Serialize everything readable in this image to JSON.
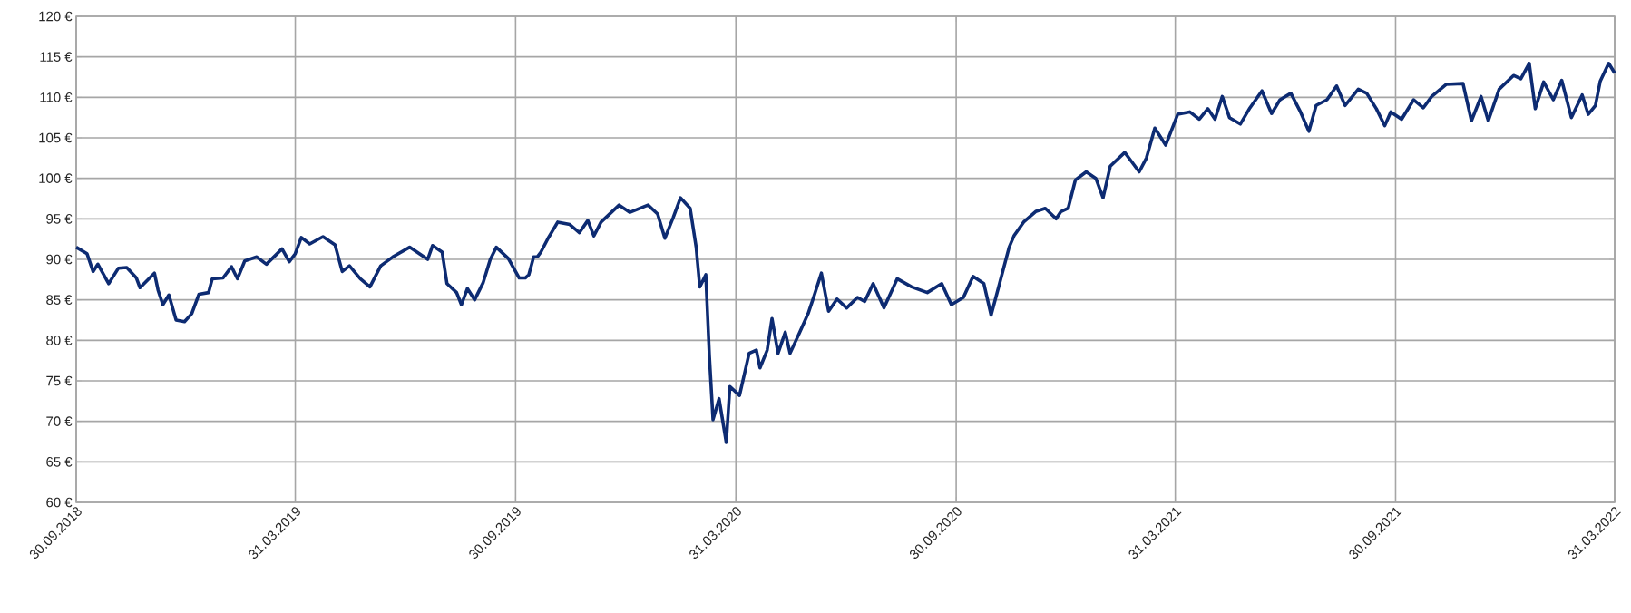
{
  "chart_data": {
    "type": "line",
    "color": "#0d2b72",
    "grid": true,
    "marker": "none",
    "line_style": "solid",
    "xlim": [
      "2018-09-30",
      "2022-03-31"
    ],
    "xticks": [
      {
        "value": "2018-09-30",
        "label": "30.09.2018"
      },
      {
        "value": "2019-03-31",
        "label": "31.03.2019"
      },
      {
        "value": "2019-09-30",
        "label": "30.09.2019"
      },
      {
        "value": "2020-03-31",
        "label": "31.03.2020"
      },
      {
        "value": "2020-09-30",
        "label": "30.09.2020"
      },
      {
        "value": "2021-03-31",
        "label": "31.03.2021"
      },
      {
        "value": "2021-09-30",
        "label": "30.09.2021"
      },
      {
        "value": "2022-03-31",
        "label": "31.03.2022"
      }
    ],
    "ylim": [
      60,
      120
    ],
    "yticks": [
      {
        "value": 60,
        "label": "60 €"
      },
      {
        "value": 65,
        "label": "65 €"
      },
      {
        "value": 70,
        "label": "70 €"
      },
      {
        "value": 75,
        "label": "75 €"
      },
      {
        "value": 80,
        "label": "80 €"
      },
      {
        "value": 85,
        "label": "85 €"
      },
      {
        "value": 90,
        "label": "90 €"
      },
      {
        "value": 95,
        "label": "95 €"
      },
      {
        "value": 100,
        "label": "100 €"
      },
      {
        "value": 105,
        "label": "105 €"
      },
      {
        "value": 110,
        "label": "110 €"
      },
      {
        "value": 115,
        "label": "115 €"
      },
      {
        "value": 120,
        "label": "120 €"
      }
    ],
    "x": [
      "2018-09-30",
      "2018-10-09",
      "2018-10-14",
      "2018-10-18",
      "2018-10-27",
      "2018-11-04",
      "2018-11-11",
      "2018-11-19",
      "2018-11-22",
      "2018-12-04",
      "2018-12-07",
      "2018-12-11",
      "2018-12-16",
      "2018-12-22",
      "2018-12-29",
      "2019-01-04",
      "2019-01-10",
      "2019-01-18",
      "2019-01-21",
      "2019-01-30",
      "2019-02-06",
      "2019-02-11",
      "2019-02-17",
      "2019-02-27",
      "2019-03-07",
      "2019-03-20",
      "2019-03-26",
      "2019-03-31",
      "2019-04-05",
      "2019-04-12",
      "2019-04-23",
      "2019-05-03",
      "2019-05-09",
      "2019-05-15",
      "2019-05-24",
      "2019-06-01",
      "2019-06-10",
      "2019-06-20",
      "2019-07-04",
      "2019-07-19",
      "2019-07-23",
      "2019-07-31",
      "2019-08-04",
      "2019-08-12",
      "2019-08-16",
      "2019-08-21",
      "2019-08-27",
      "2019-09-03",
      "2019-09-09",
      "2019-09-14",
      "2019-09-24",
      "2019-10-03",
      "2019-10-08",
      "2019-10-11",
      "2019-10-15",
      "2019-10-18",
      "2019-10-21",
      "2019-10-27",
      "2019-11-04",
      "2019-11-14",
      "2019-11-22",
      "2019-11-29",
      "2019-12-04",
      "2019-12-10",
      "2019-12-25",
      "2020-01-03",
      "2020-01-18",
      "2020-01-26",
      "2020-02-01",
      "2020-02-08",
      "2020-02-14",
      "2020-02-22",
      "2020-02-27",
      "2020-03-01",
      "2020-03-06",
      "2020-03-09",
      "2020-03-12",
      "2020-03-17",
      "2020-03-23",
      "2020-03-26",
      "2020-04-03",
      "2020-04-11",
      "2020-04-17",
      "2020-04-20",
      "2020-04-26",
      "2020-04-30",
      "2020-05-05",
      "2020-05-11",
      "2020-05-15",
      "2020-05-23",
      "2020-05-30",
      "2020-06-04",
      "2020-06-10",
      "2020-06-16",
      "2020-06-23",
      "2020-07-01",
      "2020-07-10",
      "2020-07-16",
      "2020-07-23",
      "2020-08-01",
      "2020-08-12",
      "2020-08-24",
      "2020-09-06",
      "2020-09-18",
      "2020-09-26",
      "2020-10-06",
      "2020-10-14",
      "2020-10-23",
      "2020-10-29",
      "2020-11-05",
      "2020-11-13",
      "2020-11-17",
      "2020-11-25",
      "2020-12-05",
      "2020-12-13",
      "2020-12-22",
      "2020-12-26",
      "2021-01-01",
      "2021-01-07",
      "2021-01-16",
      "2021-01-24",
      "2021-01-30",
      "2021-02-05",
      "2021-02-17",
      "2021-02-23",
      "2021-03-01",
      "2021-03-07",
      "2021-03-14",
      "2021-03-23",
      "2021-04-02",
      "2021-04-12",
      "2021-04-20",
      "2021-04-27",
      "2021-05-03",
      "2021-05-09",
      "2021-05-15",
      "2021-05-24",
      "2021-06-01",
      "2021-06-11",
      "2021-06-19",
      "2021-06-26",
      "2021-07-05",
      "2021-07-13",
      "2021-07-20",
      "2021-07-26",
      "2021-08-04",
      "2021-08-12",
      "2021-08-19",
      "2021-08-30",
      "2021-09-06",
      "2021-09-14",
      "2021-09-21",
      "2021-09-26",
      "2021-10-05",
      "2021-10-15",
      "2021-10-23",
      "2021-10-30",
      "2021-11-11",
      "2021-11-25",
      "2021-12-02",
      "2021-12-10",
      "2021-12-16",
      "2021-12-25",
      "2022-01-06",
      "2022-01-12",
      "2022-01-19",
      "2022-01-24",
      "2022-01-31",
      "2022-02-08",
      "2022-02-15",
      "2022-02-23",
      "2022-03-04",
      "2022-03-09",
      "2022-03-15",
      "2022-03-19",
      "2022-03-26",
      "2022-03-31"
    ],
    "values": [
      91.5,
      90.7,
      88.5,
      89.4,
      87.0,
      88.9,
      89.0,
      87.7,
      86.5,
      88.3,
      86.2,
      84.4,
      85.6,
      82.5,
      82.3,
      83.3,
      85.7,
      85.9,
      87.6,
      87.7,
      89.1,
      87.6,
      89.8,
      90.3,
      89.4,
      91.3,
      89.7,
      90.7,
      92.7,
      91.9,
      92.8,
      91.8,
      88.5,
      89.2,
      87.6,
      86.6,
      89.2,
      90.3,
      91.5,
      90.0,
      91.7,
      90.9,
      87.0,
      85.9,
      84.4,
      86.4,
      85.0,
      87.1,
      90.0,
      91.5,
      90.1,
      87.7,
      87.7,
      88.1,
      90.3,
      90.3,
      90.9,
      92.6,
      94.6,
      94.3,
      93.3,
      94.8,
      92.9,
      94.6,
      96.7,
      95.8,
      96.7,
      95.6,
      92.6,
      95.2,
      97.6,
      96.3,
      91.5,
      86.6,
      88.1,
      78.0,
      70.2,
      72.8,
      67.4,
      74.3,
      73.2,
      78.4,
      78.8,
      76.6,
      78.8,
      82.7,
      78.4,
      81.0,
      78.4,
      81.0,
      83.3,
      85.5,
      88.3,
      83.6,
      85.1,
      84.0,
      85.3,
      84.8,
      87.0,
      84.0,
      87.6,
      86.6,
      85.9,
      87.0,
      84.4,
      85.3,
      87.9,
      87.0,
      83.1,
      87.0,
      91.5,
      92.9,
      94.6,
      95.9,
      96.3,
      95.0,
      95.9,
      96.3,
      99.8,
      100.8,
      100.0,
      97.6,
      101.5,
      103.2,
      102.0,
      100.8,
      102.5,
      106.2,
      104.1,
      107.9,
      108.2,
      107.3,
      108.6,
      107.3,
      110.1,
      107.5,
      106.7,
      108.7,
      110.8,
      108.0,
      109.7,
      110.5,
      108.2,
      105.8,
      109.0,
      109.7,
      111.4,
      109.0,
      111.0,
      110.5,
      108.6,
      106.5,
      108.2,
      107.3,
      109.7,
      108.7,
      110.1,
      111.6,
      111.7,
      107.1,
      110.1,
      107.1,
      111.0,
      112.7,
      112.3,
      114.2,
      108.6,
      111.9,
      109.7,
      112.1,
      107.5,
      110.3,
      107.9,
      109.0,
      112.0,
      114.2,
      113.0
    ]
  }
}
